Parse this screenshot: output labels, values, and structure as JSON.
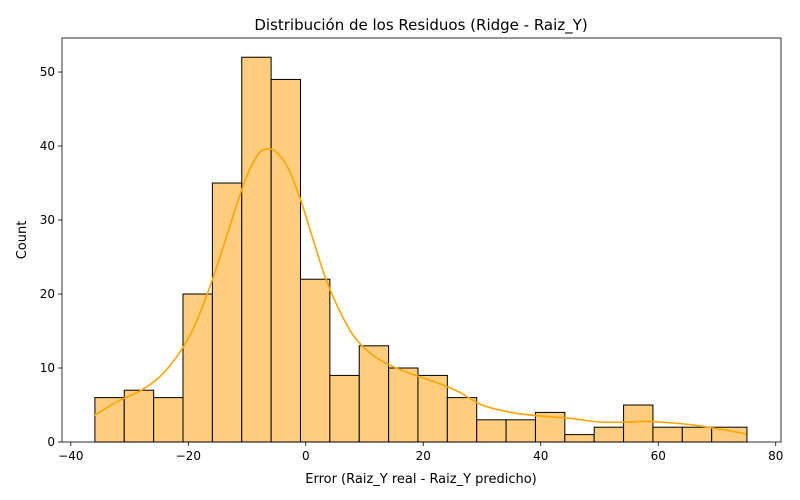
{
  "chart_data": {
    "type": "histogram",
    "title": "Distribución de los Residuos (Ridge - Raiz_Y)",
    "xlabel": "Error (Raiz_Y real - Raiz_Y predicho)",
    "ylabel": "Count",
    "xlim": [
      -41.5,
      80.9
    ],
    "ylim": [
      0,
      54.6
    ],
    "xticks": [
      -40,
      -20,
      0,
      20,
      40,
      60,
      80
    ],
    "yticks": [
      0,
      10,
      20,
      30,
      40,
      50
    ],
    "bin_edges": [
      -35.9,
      -30.9,
      -25.9,
      -20.9,
      -15.9,
      -10.9,
      -5.9,
      -0.9,
      4.1,
      9.1,
      14.1,
      19.1,
      24.1,
      29.1,
      34.1,
      39.1,
      44.1,
      49.1,
      54.1,
      59.1,
      64.1,
      69.1,
      75.1
    ],
    "counts": [
      6,
      7,
      6,
      20,
      35,
      52,
      49,
      22,
      9,
      13,
      10,
      9,
      6,
      3,
      3,
      4,
      1,
      2,
      5,
      2,
      2,
      2
    ],
    "bar_fill": "#fecd7e",
    "bar_edge": "#000000",
    "kde": {
      "color": "#ffa500",
      "x": [
        -36,
        -32,
        -28,
        -24,
        -20,
        -17,
        -14,
        -12,
        -10,
        -8,
        -6.5,
        -5,
        -3,
        -1,
        1,
        3,
        5,
        8,
        11,
        14,
        18,
        22,
        26,
        30,
        35,
        40,
        45,
        50,
        55,
        58,
        62,
        66,
        70,
        75
      ],
      "y": [
        3.6,
        5.5,
        7.0,
        9.5,
        14.0,
        19.5,
        26.5,
        31.5,
        36.0,
        39.0,
        39.6,
        39.2,
        37.0,
        33.0,
        28.0,
        23.0,
        19.0,
        14.5,
        12.0,
        10.5,
        9.2,
        8.1,
        6.8,
        5.0,
        4.0,
        3.5,
        3.2,
        2.7,
        2.7,
        2.8,
        2.6,
        2.3,
        1.8,
        1.1
      ]
    }
  }
}
